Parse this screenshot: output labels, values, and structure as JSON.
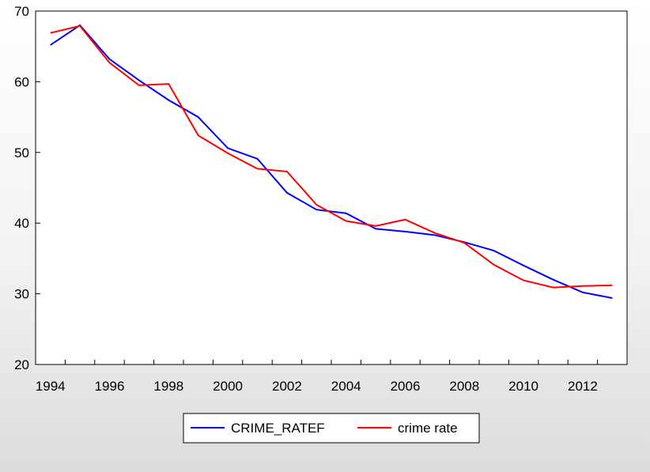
{
  "chart_data": {
    "type": "line",
    "title": "",
    "xlabel": "",
    "ylabel": "",
    "x": [
      1994,
      1995,
      1996,
      1997,
      1998,
      1999,
      2000,
      2001,
      2002,
      2003,
      2004,
      2005,
      2006,
      2007,
      2008,
      2009,
      2010,
      2011,
      2012,
      2013
    ],
    "xlim": [
      1993.5,
      2013.5
    ],
    "ylim": [
      20,
      70
    ],
    "x_ticks": [
      "1994",
      "1996",
      "1998",
      "2000",
      "2002",
      "2004",
      "2006",
      "2008",
      "2010",
      "2012"
    ],
    "y_ticks": [
      "20",
      "30",
      "40",
      "50",
      "60",
      "70"
    ],
    "grid": false,
    "legend_position": "bottom",
    "series": [
      {
        "name": "CRIME_RATEF",
        "color": "#0000ff",
        "values": [
          65.2,
          68.0,
          63.2,
          60.2,
          57.4,
          55.0,
          50.6,
          49.1,
          44.3,
          41.9,
          41.4,
          39.2,
          38.8,
          38.3,
          37.3,
          36.1,
          34.0,
          32.0,
          30.2,
          29.4
        ]
      },
      {
        "name": "crime rate",
        "color": "#ff0000",
        "values": [
          66.9,
          67.9,
          62.7,
          59.5,
          59.7,
          52.4,
          49.9,
          47.7,
          47.3,
          42.6,
          40.3,
          39.6,
          40.5,
          38.6,
          37.2,
          34.1,
          31.9,
          30.9,
          31.1,
          31.2
        ]
      }
    ]
  }
}
